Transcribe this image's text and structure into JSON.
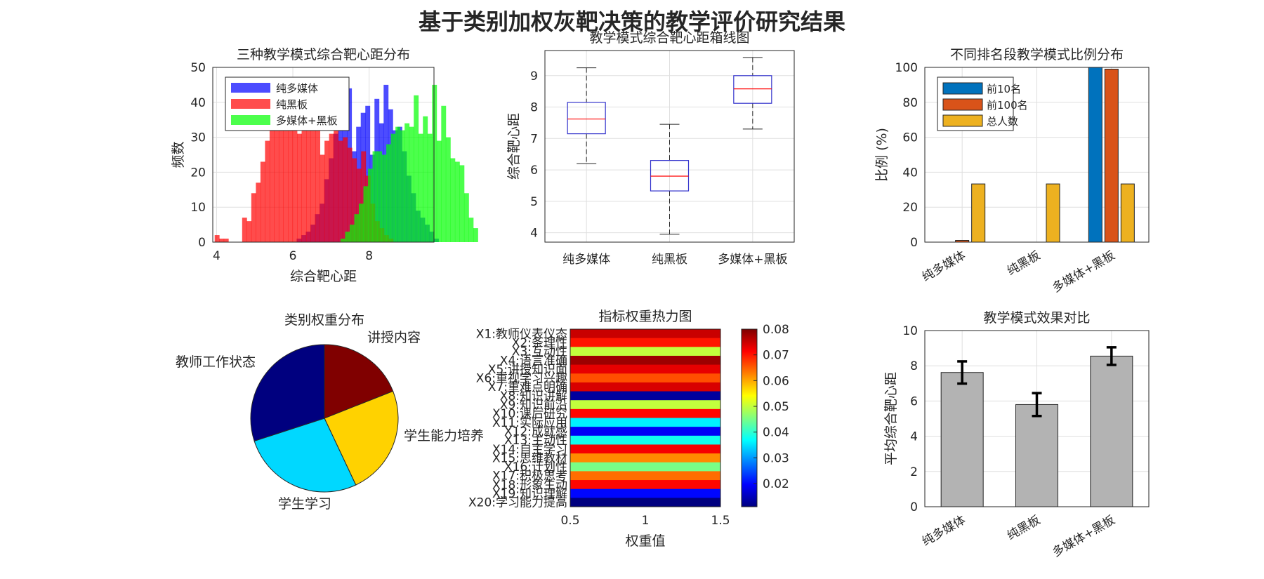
{
  "figure": {
    "title": "基于类别加权灰靶决策的教学评价研究结果"
  },
  "chart_data": [
    {
      "id": "hist",
      "type": "histogram",
      "title": "三种教学模式综合靶心距分布",
      "xlabel": "综合靶心距",
      "ylabel": "频数",
      "xlim": [
        3.9,
        9.7
      ],
      "ylim": [
        0,
        50
      ],
      "xticks": [
        4,
        6,
        8
      ],
      "yticks": [
        0,
        10,
        20,
        30,
        40,
        50
      ],
      "bin_width": 0.12,
      "legend_position": "top-left",
      "grid": true,
      "series": [
        {
          "name": "纯多媒体",
          "color": "#0000ff",
          "x_start": 6.1,
          "counts": [
            1,
            2,
            3,
            5,
            8,
            11,
            18,
            24,
            31,
            36,
            42,
            44,
            26,
            33,
            37,
            39,
            25,
            41,
            34,
            45,
            38,
            32,
            33,
            26,
            19,
            14,
            9,
            7,
            5,
            3,
            1
          ]
        },
        {
          "name": "纯黑板",
          "color": "#ff0000",
          "x_start": 3.95,
          "counts": [
            2,
            1,
            1,
            0,
            0,
            0,
            7,
            6,
            14,
            17,
            23,
            29,
            36,
            37,
            39,
            42,
            37,
            34,
            31,
            40,
            40,
            36,
            32,
            25,
            29,
            31,
            32,
            29,
            30,
            27,
            24,
            21,
            26,
            19,
            11,
            6,
            4,
            2,
            1
          ]
        },
        {
          "name": "多媒体+黑板",
          "color": "#00ff00",
          "x_start": 7.25,
          "counts": [
            1,
            3,
            5,
            8,
            11,
            16,
            21,
            26,
            26,
            25,
            28,
            31,
            33,
            32,
            34,
            33,
            42,
            31,
            36,
            31,
            45,
            29,
            39,
            30,
            24,
            23,
            22,
            14,
            7,
            4
          ]
        }
      ]
    },
    {
      "id": "box",
      "type": "box",
      "title": "教学模式综合靶心距箱线图",
      "ylabel": "综合靶心距",
      "categories": [
        "纯多媒体",
        "纯黑板",
        "多媒体+黑板"
      ],
      "ylim": [
        3.7,
        9.8
      ],
      "yticks": [
        4,
        5,
        6,
        7,
        8,
        9
      ],
      "grid": true,
      "stats": [
        {
          "min": 6.2,
          "q1": 7.15,
          "median": 7.62,
          "q3": 8.15,
          "max": 9.25
        },
        {
          "min": 3.95,
          "q1": 5.33,
          "median": 5.8,
          "q3": 6.3,
          "max": 7.45
        },
        {
          "min": 7.3,
          "q1": 8.12,
          "median": 8.58,
          "q3": 9.0,
          "max": 9.58
        }
      ]
    },
    {
      "id": "rank",
      "type": "bar",
      "title": "不同排名段教学模式比例分布",
      "ylabel": "比例 (%)",
      "categories": [
        "纯多媒体",
        "纯黑板",
        "多媒体+黑板"
      ],
      "ylim": [
        0,
        100
      ],
      "yticks": [
        0,
        20,
        40,
        60,
        80,
        100
      ],
      "legend_position": "top-left",
      "grid": true,
      "series": [
        {
          "name": "前10名",
          "color": "#0072bd",
          "values": [
            0,
            0,
            100
          ]
        },
        {
          "name": "前100名",
          "color": "#d95319",
          "values": [
            1,
            0,
            99
          ]
        },
        {
          "name": "总人数",
          "color": "#edb120",
          "values": [
            33.3,
            33.3,
            33.3
          ]
        }
      ]
    },
    {
      "id": "pie",
      "type": "pie",
      "title": "类别权重分布",
      "slices": [
        {
          "label": "讲授内容",
          "value": 19,
          "color": "#800000"
        },
        {
          "label": "学生能力培养",
          "value": 24,
          "color": "#ffd200"
        },
        {
          "label": "学生学习",
          "value": 27,
          "color": "#00d8ff"
        },
        {
          "label": "教师工作状态",
          "value": 30,
          "color": "#00007f"
        }
      ]
    },
    {
      "id": "heat",
      "type": "heatmap",
      "title": "指标权重热力图",
      "xlabel": "权重值",
      "xlim": [
        0.5,
        1.5
      ],
      "xticks": [
        "0.5",
        "1",
        "1.5"
      ],
      "colorbar_range": [
        0.011,
        0.08
      ],
      "colorbar_ticks": [
        "0.02",
        "0.03",
        "0.04",
        "0.05",
        "0.06",
        "0.07",
        "0.08"
      ],
      "rows": [
        "X1:教师仪表仪态",
        "X2:条理性",
        "X3:互动性",
        "X4:语言准确",
        "X5:讲授知识面",
        "X6:重视学习兴趣",
        "X7:重难点明确",
        "X8:知识讲解",
        "X9:知识前沿",
        "X10:课后研究",
        "X11:实际应用",
        "X12:成就感",
        "X13:主动性",
        "X14:自主学习",
        "X15:思维教材",
        "X16:计划性",
        "X17:积极思考",
        "X18:形象生动",
        "X19:知识理解",
        "X20:学习能力提高"
      ],
      "values": [
        0.075,
        0.07,
        0.05,
        0.078,
        0.073,
        0.066,
        0.074,
        0.013,
        0.05,
        0.071,
        0.036,
        0.019,
        0.038,
        0.072,
        0.062,
        0.045,
        0.064,
        0.071,
        0.02,
        0.011
      ]
    },
    {
      "id": "effect",
      "type": "bar",
      "title": "教学模式效果对比",
      "ylabel": "平均综合靶心距",
      "categories": [
        "纯多媒体",
        "纯黑板",
        "多媒体+黑板"
      ],
      "values": [
        7.62,
        5.8,
        8.55
      ],
      "errors": [
        0.63,
        0.65,
        0.5
      ],
      "ylim": [
        0,
        10
      ],
      "yticks": [
        0,
        2,
        4,
        6,
        8,
        10
      ],
      "grid": true,
      "color": "#b3b3b3"
    }
  ]
}
